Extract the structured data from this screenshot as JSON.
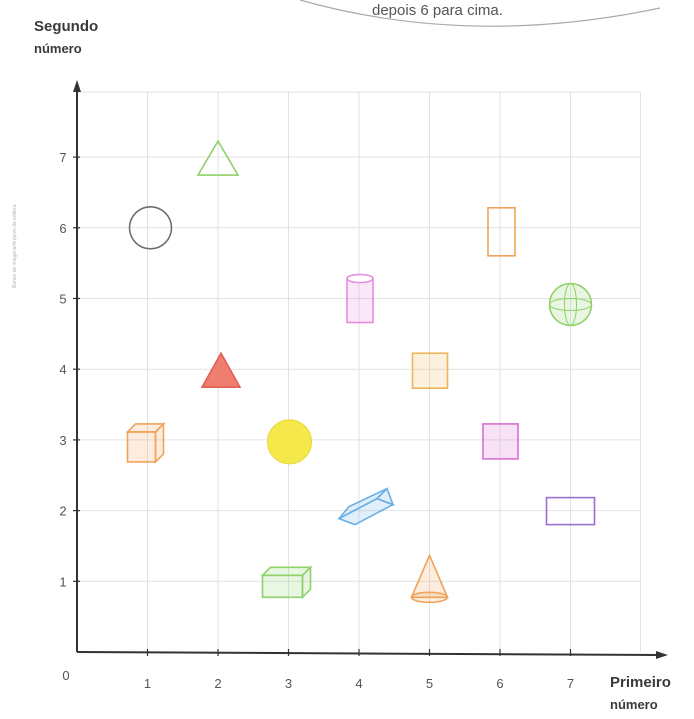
{
  "bubble_text": "depois 6 para cima.",
  "side_note": "Banco de imagens/Arquivo da editora",
  "colors": {
    "grid": "#e2e2e2",
    "axis": "#333333",
    "bubble": "#a9a9a9"
  },
  "chart_data": {
    "type": "scatter",
    "title": "",
    "xlabel": "Primeiro número",
    "ylabel": "Segundo número",
    "xlabel_line1": "Primeiro",
    "xlabel_line2": "número",
    "ylabel_line1": "Segundo",
    "ylabel_line2": "número",
    "origin_label": "0",
    "xlim": [
      0,
      7
    ],
    "ylim": [
      0,
      7
    ],
    "x_ticks": [
      "1",
      "2",
      "3",
      "4",
      "5",
      "6",
      "7"
    ],
    "y_ticks": [
      "1",
      "2",
      "3",
      "4",
      "5",
      "6",
      "7"
    ],
    "grid": true,
    "points": [
      {
        "x": 2,
        "y": 7,
        "shape": "triangle",
        "color": "#8fd16a"
      },
      {
        "x": 1,
        "y": 6,
        "shape": "circle",
        "color": "#6e6e6e"
      },
      {
        "x": 6,
        "y": 6,
        "shape": "rectangle-vertical",
        "color": "#f0a35a"
      },
      {
        "x": 4,
        "y": 5,
        "shape": "cylinder",
        "color": "#e58be0"
      },
      {
        "x": 7,
        "y": 5,
        "shape": "sphere",
        "color": "#8fd16a"
      },
      {
        "x": 2,
        "y": 4,
        "shape": "triangle-filled",
        "color": "#f07e6e"
      },
      {
        "x": 5,
        "y": 4,
        "shape": "square",
        "color": "#f0b45a"
      },
      {
        "x": 1,
        "y": 3,
        "shape": "cube",
        "color": "#f0a35a"
      },
      {
        "x": 3,
        "y": 3,
        "shape": "circle-filled",
        "color": "#f5e84a"
      },
      {
        "x": 6,
        "y": 3,
        "shape": "square",
        "color": "#d86fd0"
      },
      {
        "x": 4,
        "y": 2,
        "shape": "prism",
        "color": "#6ab0e6"
      },
      {
        "x": 7,
        "y": 2,
        "shape": "rectangle-horizontal",
        "color": "#9b6fd0"
      },
      {
        "x": 3,
        "y": 1,
        "shape": "box",
        "color": "#8fd16a"
      },
      {
        "x": 5,
        "y": 1,
        "shape": "cone",
        "color": "#f0a35a"
      }
    ]
  }
}
